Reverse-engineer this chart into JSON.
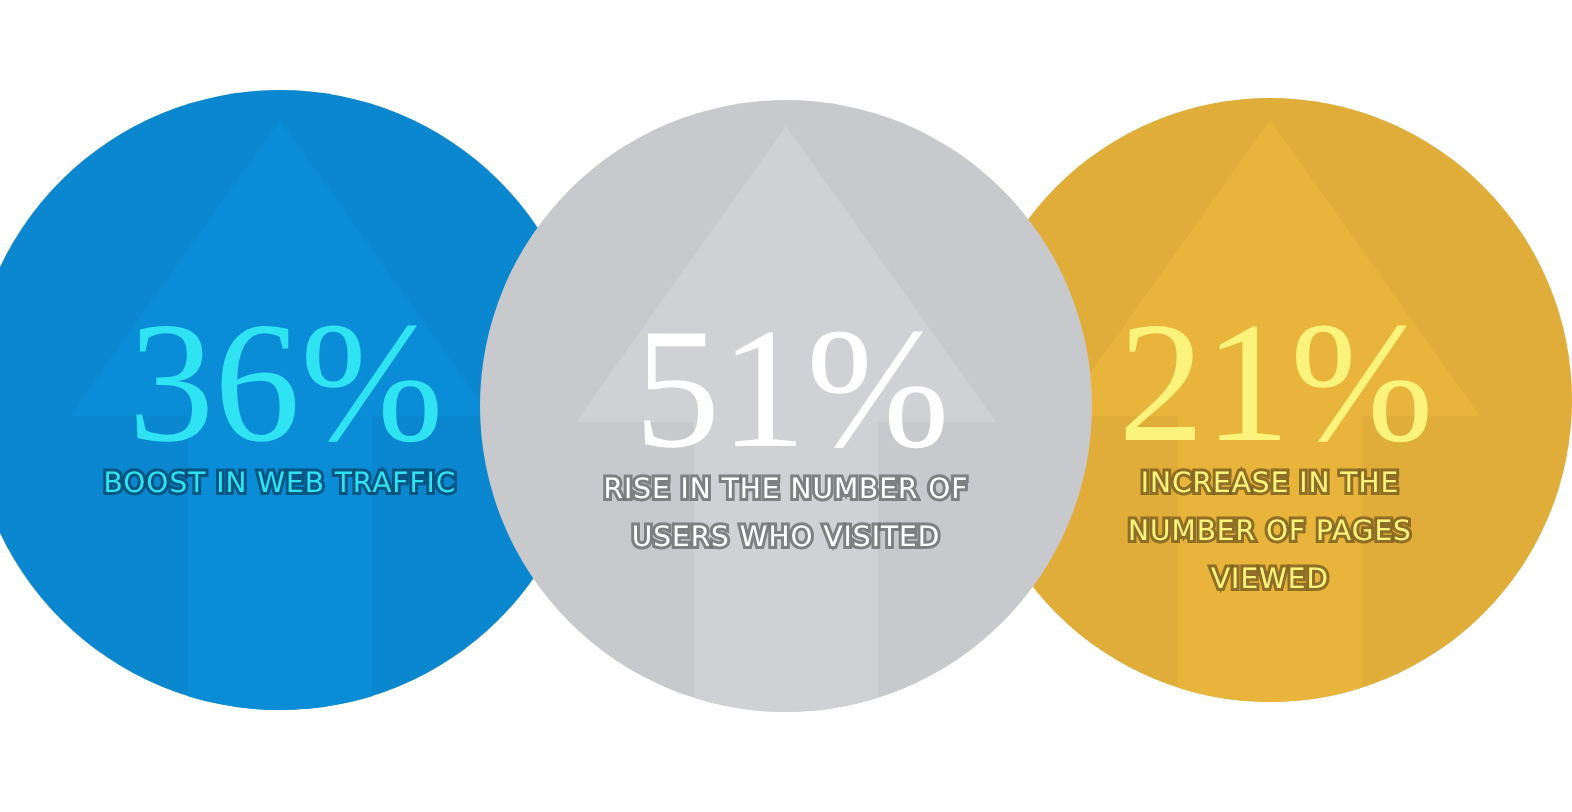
{
  "chart_data": {
    "type": "other",
    "categories": [
      "BOOST IN WEB TRAFFIC",
      "RISE IN THE NUMBER OF USERS WHO VISITED",
      "INCREASE IN THE NUMBER OF PAGES VIEWED"
    ],
    "values": [
      36,
      51,
      21
    ],
    "value_labels": [
      "36%",
      "51%",
      "21%"
    ],
    "colors": [
      "#0a87cf",
      "#c8c9cc",
      "#e0ad3a"
    ]
  }
}
